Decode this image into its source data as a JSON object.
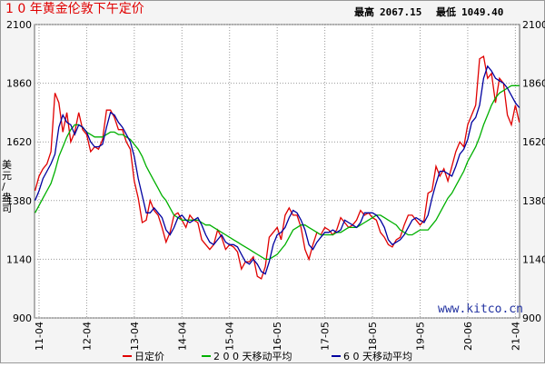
{
  "chart_data": {
    "type": "line",
    "title": "1 0 年黄金伦敦下午定价",
    "stats": [
      "最高",
      "2067.15",
      "最低",
      "1049.40"
    ],
    "ylabel": "美元/盎司",
    "watermark": "www.kitco.cn",
    "categories": [
      null,
      "11-04",
      null,
      null,
      null,
      null,
      null,
      null,
      null,
      null,
      null,
      null,
      null,
      "12-04",
      null,
      null,
      null,
      null,
      null,
      null,
      null,
      null,
      null,
      null,
      null,
      "13-04",
      null,
      null,
      null,
      null,
      null,
      null,
      null,
      null,
      null,
      null,
      null,
      "14-04",
      null,
      null,
      null,
      null,
      null,
      null,
      null,
      null,
      null,
      null,
      null,
      "15-04",
      null,
      null,
      null,
      null,
      null,
      null,
      null,
      null,
      null,
      null,
      null,
      "16-05",
      null,
      null,
      null,
      null,
      null,
      null,
      null,
      null,
      null,
      null,
      null,
      "17-05",
      null,
      null,
      null,
      null,
      null,
      null,
      null,
      null,
      null,
      null,
      null,
      "18-05",
      null,
      null,
      null,
      null,
      null,
      null,
      null,
      null,
      null,
      null,
      null,
      "19-05",
      null,
      null,
      null,
      null,
      null,
      null,
      null,
      null,
      null,
      null,
      null,
      "20-06",
      null,
      null,
      null,
      null,
      null,
      null,
      null,
      null,
      null,
      null,
      null,
      "21-04",
      null
    ],
    "ylim": [
      900,
      2100
    ],
    "yticks": [
      900,
      1140,
      1380,
      1620,
      1860,
      2100
    ],
    "grid": true,
    "series": [
      {
        "name": "日定价",
        "color": "#e00000",
        "values": [
          1420,
          1480,
          1510,
          1530,
          1580,
          1820,
          1780,
          1660,
          1740,
          1620,
          1660,
          1740,
          1670,
          1650,
          1580,
          1600,
          1590,
          1630,
          1750,
          1750,
          1720,
          1670,
          1670,
          1620,
          1590,
          1460,
          1390,
          1290,
          1300,
          1380,
          1340,
          1320,
          1270,
          1210,
          1250,
          1320,
          1330,
          1300,
          1270,
          1320,
          1300,
          1290,
          1220,
          1200,
          1180,
          1200,
          1260,
          1230,
          1180,
          1200,
          1190,
          1170,
          1100,
          1130,
          1130,
          1150,
          1070,
          1060,
          1110,
          1230,
          1250,
          1270,
          1220,
          1320,
          1350,
          1320,
          1320,
          1270,
          1180,
          1140,
          1200,
          1250,
          1240,
          1270,
          1260,
          1240,
          1260,
          1310,
          1290,
          1270,
          1280,
          1300,
          1340,
          1320,
          1330,
          1310,
          1300,
          1250,
          1230,
          1200,
          1190,
          1220,
          1230,
          1280,
          1320,
          1320,
          1300,
          1280,
          1300,
          1410,
          1420,
          1520,
          1480,
          1510,
          1460,
          1520,
          1580,
          1620,
          1600,
          1690,
          1730,
          1770,
          1960,
          1970,
          1880,
          1900,
          1780,
          1880,
          1860,
          1730,
          1690,
          1770,
          1700
        ]
      },
      {
        "name": "2 0 0 天移动平均",
        "color": "#00b000",
        "values": [
          1330,
          1360,
          1390,
          1420,
          1450,
          1500,
          1560,
          1600,
          1640,
          1670,
          1690,
          1690,
          1680,
          1660,
          1650,
          1640,
          1640,
          1640,
          1650,
          1660,
          1660,
          1650,
          1650,
          1640,
          1630,
          1610,
          1590,
          1560,
          1520,
          1490,
          1460,
          1430,
          1400,
          1380,
          1350,
          1320,
          1310,
          1300,
          1300,
          1300,
          1300,
          1300,
          1290,
          1280,
          1280,
          1270,
          1260,
          1250,
          1240,
          1230,
          1220,
          1210,
          1200,
          1190,
          1180,
          1170,
          1160,
          1150,
          1140,
          1140,
          1150,
          1160,
          1180,
          1200,
          1230,
          1260,
          1270,
          1280,
          1280,
          1270,
          1260,
          1250,
          1240,
          1240,
          1240,
          1240,
          1250,
          1250,
          1260,
          1270,
          1270,
          1270,
          1280,
          1290,
          1300,
          1310,
          1320,
          1320,
          1310,
          1300,
          1290,
          1280,
          1260,
          1250,
          1240,
          1240,
          1250,
          1260,
          1260,
          1260,
          1280,
          1300,
          1330,
          1360,
          1390,
          1410,
          1440,
          1470,
          1500,
          1540,
          1570,
          1600,
          1640,
          1690,
          1730,
          1770,
          1800,
          1820,
          1830,
          1840,
          1850,
          1850,
          1850
        ]
      },
      {
        "name": "6 0 天移动平均",
        "color": "#0000a0",
        "values": [
          1380,
          1420,
          1470,
          1500,
          1530,
          1570,
          1680,
          1730,
          1700,
          1690,
          1650,
          1690,
          1680,
          1660,
          1620,
          1600,
          1600,
          1610,
          1680,
          1740,
          1730,
          1700,
          1680,
          1650,
          1620,
          1560,
          1470,
          1400,
          1330,
          1330,
          1350,
          1330,
          1310,
          1260,
          1240,
          1270,
          1310,
          1320,
          1300,
          1290,
          1300,
          1310,
          1280,
          1240,
          1210,
          1200,
          1220,
          1240,
          1210,
          1200,
          1200,
          1190,
          1160,
          1130,
          1120,
          1140,
          1120,
          1090,
          1080,
          1130,
          1200,
          1240,
          1250,
          1270,
          1310,
          1340,
          1330,
          1300,
          1260,
          1200,
          1180,
          1210,
          1230,
          1250,
          1250,
          1260,
          1250,
          1260,
          1300,
          1290,
          1280,
          1270,
          1290,
          1330,
          1330,
          1330,
          1320,
          1300,
          1270,
          1220,
          1200,
          1210,
          1220,
          1240,
          1270,
          1300,
          1310,
          1300,
          1290,
          1320,
          1390,
          1450,
          1500,
          1500,
          1490,
          1480,
          1520,
          1570,
          1590,
          1630,
          1700,
          1720,
          1770,
          1880,
          1930,
          1910,
          1880,
          1870,
          1860,
          1840,
          1810,
          1780,
          1760
        ]
      }
    ]
  }
}
